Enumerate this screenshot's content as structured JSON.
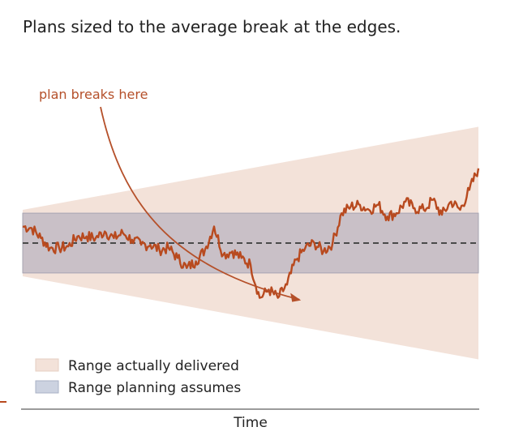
{
  "chart_data": {
    "type": "line",
    "title": "Plans sized to the average break at the edges.",
    "xlabel": "Time",
    "ylabel": "",
    "xlim": [
      0,
      100
    ],
    "ylim": [
      -100,
      100
    ],
    "annotation": {
      "text": "plan breaks here",
      "x": 60,
      "y": -32
    },
    "bands": [
      {
        "name": "Range actually delivered",
        "kind": "cone",
        "start": [
          -20,
          20
        ],
        "end": [
          -70,
          70
        ]
      },
      {
        "name": "Range planning assumes",
        "kind": "band",
        "range": [
          -18,
          18
        ]
      }
    ],
    "reference_line": {
      "y": 0,
      "style": "dashed"
    },
    "series": [
      {
        "x": [
          0,
          2,
          4,
          6,
          8,
          10,
          12,
          14,
          16,
          18,
          20,
          22,
          24,
          26,
          28,
          30,
          32,
          34,
          36,
          38,
          40,
          42,
          44,
          46,
          48,
          50,
          52,
          54,
          56,
          58,
          60,
          62,
          64,
          66,
          68,
          70,
          72,
          74,
          76,
          78,
          80,
          82,
          84,
          86,
          88,
          90,
          92,
          94,
          96,
          98,
          100
        ],
        "values": [
          10,
          9,
          3,
          -3,
          -3,
          -2,
          4,
          4,
          3,
          7,
          3,
          6,
          2,
          -1,
          -1,
          -4,
          -3,
          -9,
          -15,
          -11,
          -4,
          10,
          -7,
          -5,
          -9,
          -13,
          -33,
          -28,
          -33,
          -25,
          -10,
          -3,
          0,
          -5,
          0,
          18,
          22,
          23,
          20,
          23,
          16,
          18,
          25,
          21,
          20,
          26,
          17,
          25,
          20,
          32,
          45
        ]
      }
    ],
    "legend": {
      "position": "bottom-left",
      "items": [
        {
          "label": "Range actually delivered",
          "color": "#f3e2d9"
        },
        {
          "label": "Range planning assumes",
          "color": "#ccd2e0"
        }
      ]
    },
    "colors": {
      "cone": "#f3e2d9",
      "band": "#c9c0c7",
      "band_edge": "#a7a4b2",
      "line": "#b84a1f",
      "annotation": "#b5502a",
      "reference": "#4a4a4a",
      "axis": "#7a7a7a",
      "text": "#222222"
    }
  }
}
